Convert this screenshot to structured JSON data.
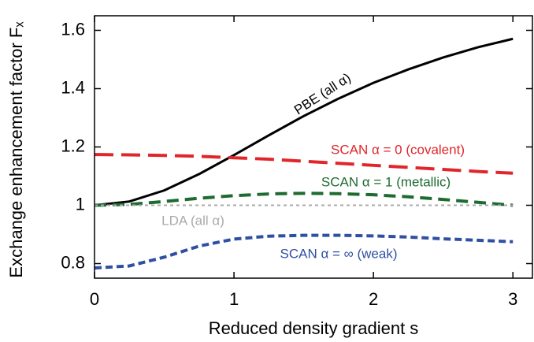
{
  "chart_data": {
    "type": "line",
    "xlabel": "Reduced density gradient s",
    "ylabel": "Exchange enhancement factor Fₓ",
    "x": [
      0,
      0.25,
      0.5,
      0.75,
      1,
      1.25,
      1.5,
      1.75,
      2,
      2.25,
      2.5,
      2.75,
      3
    ],
    "series": [
      {
        "name": "PBE (all α)",
        "color": "#000000",
        "dash": "solid",
        "values": [
          1.0,
          1.013,
          1.051,
          1.107,
          1.172,
          1.24,
          1.306,
          1.366,
          1.42,
          1.466,
          1.507,
          1.542,
          1.571
        ]
      },
      {
        "name": "SCAN α = 0 (covalent)",
        "color": "#e0262b",
        "dash": "long",
        "values": [
          1.174,
          1.173,
          1.171,
          1.168,
          1.163,
          1.158,
          1.151,
          1.144,
          1.137,
          1.13,
          1.123,
          1.116,
          1.11
        ]
      },
      {
        "name": "SCAN α = 1 (metallic)",
        "color": "#1e6b30",
        "dash": "medium",
        "values": [
          1.0,
          1.003,
          1.013,
          1.024,
          1.033,
          1.039,
          1.041,
          1.04,
          1.036,
          1.029,
          1.02,
          1.01,
          1.0
        ]
      },
      {
        "name": "LDA (all α)",
        "color": "#aaaaaa",
        "dash": "dotted",
        "values": [
          1,
          1,
          1,
          1,
          1,
          1,
          1,
          1,
          1,
          1,
          1,
          1,
          1
        ]
      },
      {
        "name": "SCAN α = ∞ (weak)",
        "color": "#2f4fa3",
        "dash": "short",
        "values": [
          0.785,
          0.792,
          0.822,
          0.86,
          0.884,
          0.894,
          0.897,
          0.897,
          0.895,
          0.891,
          0.885,
          0.88,
          0.875
        ]
      }
    ],
    "xlim": [
      0,
      3.14
    ],
    "xticks": [
      0,
      1,
      2,
      3
    ],
    "ylim": [
      0.75,
      1.65
    ],
    "yticks": [
      0.8,
      1,
      1.2,
      1.4,
      1.6
    ]
  }
}
